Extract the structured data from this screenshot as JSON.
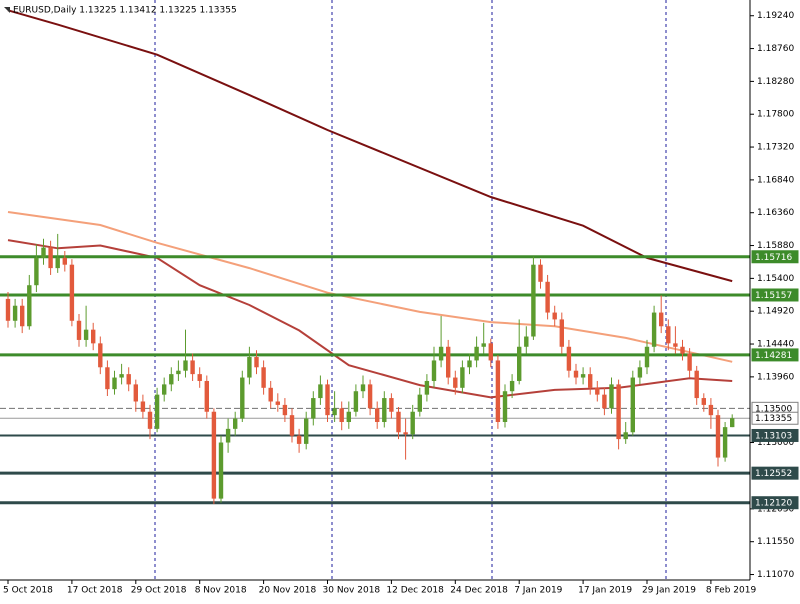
{
  "chart_data": {
    "type": "candlestick",
    "title": "EURUSD,Daily  1.13225 1.13412 1.13225 1.13355",
    "categories": [
      "5 Oct 2018",
      null,
      null,
      null,
      null,
      null,
      null,
      null,
      null,
      "17 Oct 2018",
      null,
      null,
      null,
      null,
      null,
      null,
      null,
      null,
      "29 Oct 2018",
      null,
      null,
      null,
      null,
      null,
      null,
      null,
      null,
      "8 Nov 2018",
      null,
      null,
      null,
      null,
      null,
      null,
      null,
      null,
      "20 Nov 2018",
      null,
      null,
      null,
      null,
      null,
      null,
      null,
      null,
      "30 Nov 2018",
      null,
      null,
      null,
      null,
      null,
      null,
      null,
      null,
      "12 Dec 2018",
      null,
      null,
      null,
      null,
      null,
      null,
      null,
      null,
      "24 Dec 2018",
      null,
      null,
      null,
      null,
      null,
      null,
      null,
      null,
      "7 Jan 2019",
      null,
      null,
      null,
      null,
      null,
      null,
      null,
      null,
      "17 Jan 2019",
      null,
      null,
      null,
      null,
      null,
      null,
      null,
      null,
      "29 Jan 2019",
      null,
      null,
      null,
      null,
      null,
      null,
      null,
      null,
      "8 Feb 2019",
      null,
      null,
      null
    ],
    "open": [
      1.151,
      1.1478,
      1.15,
      1.147,
      1.153,
      1.157,
      1.1585,
      1.1555,
      1.157,
      1.156,
      1.1478,
      1.145,
      1.1465,
      1.1445,
      1.141,
      1.1378,
      1.1395,
      1.14,
      1.1385,
      1.136,
      1.1345,
      1.132,
      1.137,
      1.1385,
      1.14,
      1.1405,
      1.142,
      1.14,
      1.139,
      1.1345,
      1.1218,
      1.13,
      1.132,
      1.1335,
      1.1395,
      1.1425,
      1.141,
      1.138,
      1.136,
      1.1355,
      1.134,
      1.131,
      1.1298,
      1.1335,
      1.1365,
      1.1385,
      1.134,
      1.135,
      1.133,
      1.1345,
      1.1375,
      1.1385,
      1.135,
      1.133,
      1.1365,
      1.1345,
      1.1315,
      1.1312,
      1.1345,
      1.137,
      1.139,
      1.142,
      1.144,
      1.1395,
      1.138,
      1.141,
      1.142,
      1.144,
      1.1445,
      1.142,
      1.133,
      1.1375,
      1.139,
      1.144,
      1.1455,
      1.156,
      1.1535,
      1.149,
      1.148,
      1.144,
      1.1405,
      1.1395,
      1.14,
      1.138,
      1.137,
      1.135,
      1.1385,
      1.1305,
      1.1315,
      1.1395,
      1.141,
      1.144,
      1.149,
      1.147,
      1.1445,
      1.144,
      1.143,
      1.1405,
      1.1365,
      1.1355,
      1.134,
      1.1278,
      1.13225
    ],
    "high": [
      1.152,
      1.151,
      1.151,
      1.1545,
      1.159,
      1.1598,
      1.1595,
      1.1605,
      1.158,
      1.1568,
      1.1488,
      1.15,
      1.1475,
      1.1455,
      1.142,
      1.1405,
      1.1415,
      1.141,
      1.1392,
      1.137,
      1.1355,
      1.138,
      1.1395,
      1.141,
      1.142,
      1.1465,
      1.143,
      1.141,
      1.1398,
      1.135,
      1.131,
      1.1335,
      1.1345,
      1.1405,
      1.144,
      1.1435,
      1.142,
      1.139,
      1.1372,
      1.1365,
      1.135,
      1.132,
      1.1345,
      1.1375,
      1.1398,
      1.1392,
      1.1375,
      1.136,
      1.136,
      1.1385,
      1.1398,
      1.1392,
      1.136,
      1.1375,
      1.1372,
      1.1352,
      1.1335,
      1.1355,
      1.138,
      1.14,
      1.144,
      1.1485,
      1.145,
      1.1405,
      1.142,
      1.143,
      1.1455,
      1.1475,
      1.1452,
      1.1428,
      1.1385,
      1.14,
      1.148,
      1.147,
      1.1572,
      1.1568,
      1.1545,
      1.15,
      1.149,
      1.145,
      1.1415,
      1.141,
      1.141,
      1.139,
      1.138,
      1.1395,
      1.1392,
      1.133,
      1.1405,
      1.142,
      1.145,
      1.15,
      1.1515,
      1.148,
      1.147,
      1.145,
      1.1438,
      1.1412,
      1.1372,
      1.1365,
      1.1348,
      1.133,
      1.13412
    ],
    "low": [
      1.1468,
      1.1468,
      1.146,
      1.1465,
      1.152,
      1.156,
      1.1545,
      1.1548,
      1.155,
      1.147,
      1.144,
      1.144,
      1.1435,
      1.14,
      1.1368,
      1.137,
      1.1385,
      1.1375,
      1.1345,
      1.1335,
      1.1305,
      1.1315,
      1.136,
      1.1375,
      1.139,
      1.1395,
      1.139,
      1.138,
      1.1335,
      1.121,
      1.1212,
      1.1285,
      1.131,
      1.133,
      1.1385,
      1.14,
      1.137,
      1.135,
      1.1345,
      1.133,
      1.13,
      1.1285,
      1.129,
      1.1325,
      1.1355,
      1.133,
      1.133,
      1.1318,
      1.132,
      1.1338,
      1.1365,
      1.134,
      1.132,
      1.1322,
      1.1335,
      1.1305,
      1.1275,
      1.1305,
      1.1338,
      1.136,
      1.138,
      1.141,
      1.1385,
      1.137,
      1.1372,
      1.14,
      1.141,
      1.143,
      1.141,
      1.132,
      1.1322,
      1.1365,
      1.1385,
      1.143,
      1.145,
      1.1525,
      1.148,
      1.147,
      1.143,
      1.1395,
      1.1385,
      1.1385,
      1.137,
      1.136,
      1.134,
      1.1342,
      1.129,
      1.1298,
      1.131,
      1.1385,
      1.14,
      1.1432,
      1.146,
      1.1435,
      1.143,
      1.142,
      1.1395,
      1.1355,
      1.1345,
      1.132,
      1.1265,
      1.1272,
      1.13225
    ],
    "close": [
      1.1478,
      1.15,
      1.147,
      1.153,
      1.157,
      1.1585,
      1.1555,
      1.157,
      1.156,
      1.1478,
      1.145,
      1.1465,
      1.1445,
      1.141,
      1.1378,
      1.1395,
      1.14,
      1.1385,
      1.136,
      1.1345,
      1.132,
      1.137,
      1.1385,
      1.14,
      1.1405,
      1.142,
      1.14,
      1.139,
      1.1345,
      1.1218,
      1.13,
      1.132,
      1.1335,
      1.1395,
      1.1425,
      1.141,
      1.138,
      1.136,
      1.1355,
      1.134,
      1.131,
      1.1298,
      1.1335,
      1.1365,
      1.1385,
      1.134,
      1.135,
      1.133,
      1.1345,
      1.1375,
      1.1385,
      1.135,
      1.133,
      1.1365,
      1.1345,
      1.1315,
      1.1312,
      1.1345,
      1.137,
      1.139,
      1.142,
      1.144,
      1.1395,
      1.138,
      1.141,
      1.142,
      1.144,
      1.1445,
      1.142,
      1.133,
      1.1375,
      1.139,
      1.144,
      1.1455,
      1.156,
      1.1535,
      1.149,
      1.148,
      1.144,
      1.1405,
      1.1395,
      1.14,
      1.138,
      1.137,
      1.135,
      1.1385,
      1.1305,
      1.1315,
      1.1395,
      1.141,
      1.144,
      1.149,
      1.147,
      1.1445,
      1.144,
      1.143,
      1.1405,
      1.1365,
      1.1355,
      1.134,
      1.1278,
      1.13225,
      1.13355
    ],
    "up_color": "#5c9b2e",
    "down_color": "#e25a3c",
    "ylim": [
      1.1099,
      1.1947
    ],
    "yticks": [
      {
        "value": 1.1924,
        "label": "1.19240"
      },
      {
        "value": 1.1876,
        "label": "1.18760"
      },
      {
        "value": 1.1828,
        "label": "1.18280"
      },
      {
        "value": 1.178,
        "label": "1.17800"
      },
      {
        "value": 1.1732,
        "label": "1.17320"
      },
      {
        "value": 1.1684,
        "label": "1.16840"
      },
      {
        "value": 1.1636,
        "label": "1.16360"
      },
      {
        "value": 1.1588,
        "label": "1.15880"
      },
      {
        "value": 1.154,
        "label": "1.15400"
      },
      {
        "value": 1.1492,
        "label": "1.14920"
      },
      {
        "value": 1.1444,
        "label": "1.14440"
      },
      {
        "value": 1.1396,
        "label": "1.13960"
      },
      {
        "value": 1.13,
        "label": "1.13000"
      },
      {
        "value": 1.1203,
        "label": "1.12030"
      },
      {
        "value": 1.1155,
        "label": "1.11550"
      },
      {
        "value": 1.1107,
        "label": "1.11070"
      }
    ],
    "moving_averages": [
      {
        "color": "#7a1010",
        "x": [
          0,
          7,
          21,
          34,
          45,
          68,
          81,
          90,
          102
        ],
        "values": [
          1.1932,
          1.1911,
          1.1867,
          1.1808,
          1.1757,
          1.1659,
          1.1617,
          1.157,
          1.1536
        ]
      },
      {
        "color": "#f4a07a",
        "x": [
          0,
          13,
          21,
          34,
          45,
          58,
          68,
          77,
          87,
          96,
          102
        ],
        "values": [
          1.1637,
          1.1618,
          1.1592,
          1.1555,
          1.1519,
          1.1491,
          1.1476,
          1.147,
          1.1453,
          1.1432,
          1.1418
        ]
      },
      {
        "color": "#b5403a",
        "x": [
          0,
          7,
          13,
          21,
          27,
          34,
          41,
          48,
          58,
          68,
          77,
          86,
          96,
          102
        ],
        "values": [
          1.1596,
          1.1584,
          1.1588,
          1.157,
          1.153,
          1.1501,
          1.1464,
          1.1413,
          1.1384,
          1.1366,
          1.1377,
          1.138,
          1.1394,
          1.139
        ]
      }
    ],
    "levels": [
      {
        "value": 1.15716,
        "color": "#3d8b2a",
        "width": 3
      },
      {
        "value": 1.15157,
        "color": "#3d8b2a",
        "width": 3
      },
      {
        "value": 1.14281,
        "color": "#3d8b2a",
        "width": 3
      },
      {
        "value": 1.135,
        "label": "1.13500",
        "color": "#707070",
        "width": 1,
        "dashed": true
      },
      {
        "value": 1.13355,
        "color": "#9a9a9a",
        "width": 1
      },
      {
        "value": 1.13103,
        "color": "#2e4a4a",
        "width": 2
      },
      {
        "value": 1.12552,
        "color": "#2e4a4a",
        "width": 3
      },
      {
        "value": 1.1212,
        "label": "1.12120",
        "color": "#2e4a4a",
        "width": 3
      }
    ]
  }
}
